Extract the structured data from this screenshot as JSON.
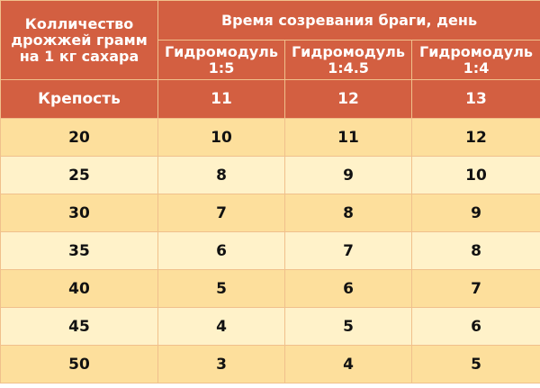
{
  "header": {
    "first_col_label": "Колличество дрожжей грамм на 1 кг сахара",
    "group_label": "Время созревания браги, день",
    "columns": [
      "Гидромодуль 1:5",
      "Гидромодуль 1:4.5",
      "Гидромодуль 1:4"
    ],
    "strength_label": "Крепость",
    "strength_values": [
      "11",
      "12",
      "13"
    ]
  },
  "rows": [
    {
      "yeast": "20",
      "values": [
        "10",
        "11",
        "12"
      ]
    },
    {
      "yeast": "25",
      "values": [
        "8",
        "9",
        "10"
      ]
    },
    {
      "yeast": "30",
      "values": [
        "7",
        "8",
        "9"
      ]
    },
    {
      "yeast": "35",
      "values": [
        "6",
        "7",
        "8"
      ]
    },
    {
      "yeast": "40",
      "values": [
        "5",
        "6",
        "7"
      ]
    },
    {
      "yeast": "45",
      "values": [
        "4",
        "5",
        "6"
      ]
    },
    {
      "yeast": "50",
      "values": [
        "3",
        "4",
        "5"
      ]
    }
  ],
  "colors": {
    "header_bg": "#d35f41",
    "row_light": "#fff2c9",
    "row_dark": "#fddf9c"
  }
}
